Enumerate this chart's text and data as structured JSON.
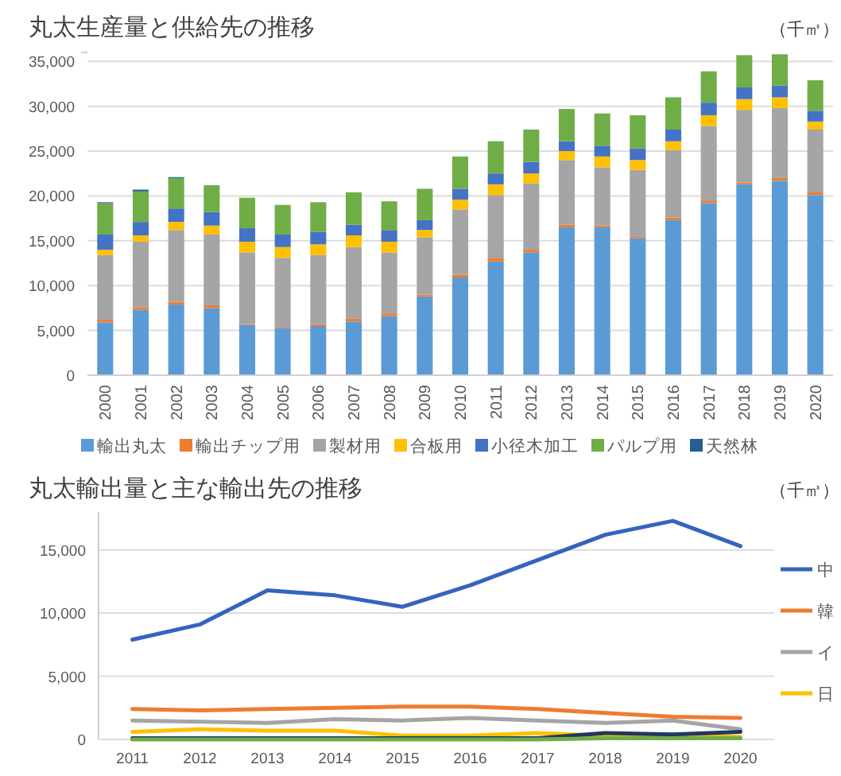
{
  "chart_data": [
    {
      "type": "bar",
      "stacked": true,
      "title": "丸太生産量と供給先の推移",
      "ylabel": "（千㎥）",
      "categories": [
        "2000",
        "2001",
        "2002",
        "2003",
        "2004",
        "2005",
        "2006",
        "2007",
        "2008",
        "2009",
        "2010",
        "2011",
        "2012",
        "2013",
        "2014",
        "2015",
        "2016",
        "2017",
        "2018",
        "2019",
        "2020"
      ],
      "series": [
        {
          "name": "輸出丸太",
          "color": "#5b9bd5",
          "values": [
            5900,
            7300,
            7900,
            7500,
            5600,
            5300,
            5500,
            6000,
            6600,
            8800,
            10900,
            12700,
            13700,
            16500,
            16500,
            15300,
            17300,
            19200,
            21300,
            21700,
            20100
          ]
        },
        {
          "name": "輸出チップ用",
          "color": "#ed7d31",
          "values": [
            300,
            300,
            300,
            300,
            100,
            100,
            200,
            300,
            300,
            200,
            300,
            400,
            300,
            300,
            200,
            200,
            300,
            300,
            200,
            300,
            300
          ]
        },
        {
          "name": "製材用",
          "color": "#a5a5a5",
          "values": [
            7200,
            7300,
            8000,
            7900,
            8000,
            7700,
            7700,
            8000,
            6800,
            6400,
            7300,
            7000,
            7400,
            7200,
            6500,
            7400,
            7500,
            8300,
            8100,
            7800,
            7000
          ]
        },
        {
          "name": "合板用",
          "color": "#ffc000",
          "values": [
            600,
            700,
            900,
            1000,
            1200,
            1200,
            1200,
            1300,
            1200,
            800,
            1100,
            1200,
            1100,
            1000,
            1200,
            1100,
            1000,
            1200,
            1200,
            1200,
            900
          ]
        },
        {
          "name": "小径木加工",
          "color": "#4472c4",
          "values": [
            1700,
            1500,
            1500,
            1500,
            1500,
            1400,
            1400,
            1200,
            1300,
            1100,
            1200,
            1200,
            1300,
            1100,
            1200,
            1300,
            1300,
            1400,
            1300,
            1300,
            1200
          ]
        },
        {
          "name": "パルプ用",
          "color": "#70ad47",
          "values": [
            3500,
            3400,
            3400,
            3000,
            3400,
            3300,
            3300,
            3600,
            3200,
            3500,
            3600,
            3600,
            3600,
            3600,
            3600,
            3700,
            3600,
            3500,
            3600,
            3500,
            3400
          ]
        },
        {
          "name": "天然林",
          "color": "#255e91",
          "values": [
            100,
            200,
            100,
            0,
            0,
            0,
            0,
            0,
            0,
            0,
            0,
            0,
            0,
            0,
            0,
            0,
            0,
            0,
            0,
            0,
            0
          ]
        }
      ],
      "ylim": [
        0,
        36000
      ],
      "yticks": [
        {
          "value": 0,
          "label": "0"
        },
        {
          "value": 5000,
          "label": "5,000"
        },
        {
          "value": 10000,
          "label": "10,000"
        },
        {
          "value": 15000,
          "label": "15,000"
        },
        {
          "value": 20000,
          "label": "20,000"
        },
        {
          "value": 25000,
          "label": "25,000"
        },
        {
          "value": 30000,
          "label": "30,000"
        },
        {
          "value": 35000,
          "label": "35,000"
        },
        {
          "value": 36000,
          "label": null
        }
      ],
      "grid": "y",
      "legend": "bottom"
    },
    {
      "type": "line",
      "title": "丸太輸出量と主な輸出先の推移",
      "ylabel": "（千㎥）",
      "categories": [
        "2011",
        "2012",
        "2013",
        "2014",
        "2015",
        "2016",
        "2017",
        "2018",
        "2019",
        "2020"
      ],
      "series": [
        {
          "name": "中",
          "color": "#3563c0",
          "values": [
            7900,
            9100,
            11800,
            11400,
            10500,
            12200,
            14200,
            16200,
            17300,
            15300
          ]
        },
        {
          "name": "韓",
          "color": "#ed7d31",
          "values": [
            2400,
            2300,
            2400,
            2500,
            2600,
            2600,
            2400,
            2100,
            1800,
            1700
          ]
        },
        {
          "name": "イ",
          "color": "#a5a5a5",
          "values": [
            1500,
            1400,
            1300,
            1600,
            1500,
            1700,
            1500,
            1300,
            1500,
            800
          ]
        },
        {
          "name": "日",
          "color": "#ffc000",
          "values": [
            600,
            800,
            700,
            700,
            300,
            300,
            500,
            300,
            300,
            200
          ]
        },
        {
          "color": "#1f3864",
          "values": [
            100,
            100,
            100,
            100,
            100,
            100,
            100,
            500,
            400,
            600
          ]
        },
        {
          "color": "#70ad47",
          "values": [
            0,
            0,
            0,
            0,
            0,
            0,
            0,
            100,
            100,
            100
          ]
        }
      ],
      "ylim": [
        0,
        18000
      ],
      "yticks": [
        {
          "value": 0,
          "label": "0"
        },
        {
          "value": 5000,
          "label": "5,000"
        },
        {
          "value": 10000,
          "label": "10,000"
        },
        {
          "value": 15000,
          "label": "15,000"
        }
      ],
      "grid": "y",
      "legend": "right"
    }
  ]
}
